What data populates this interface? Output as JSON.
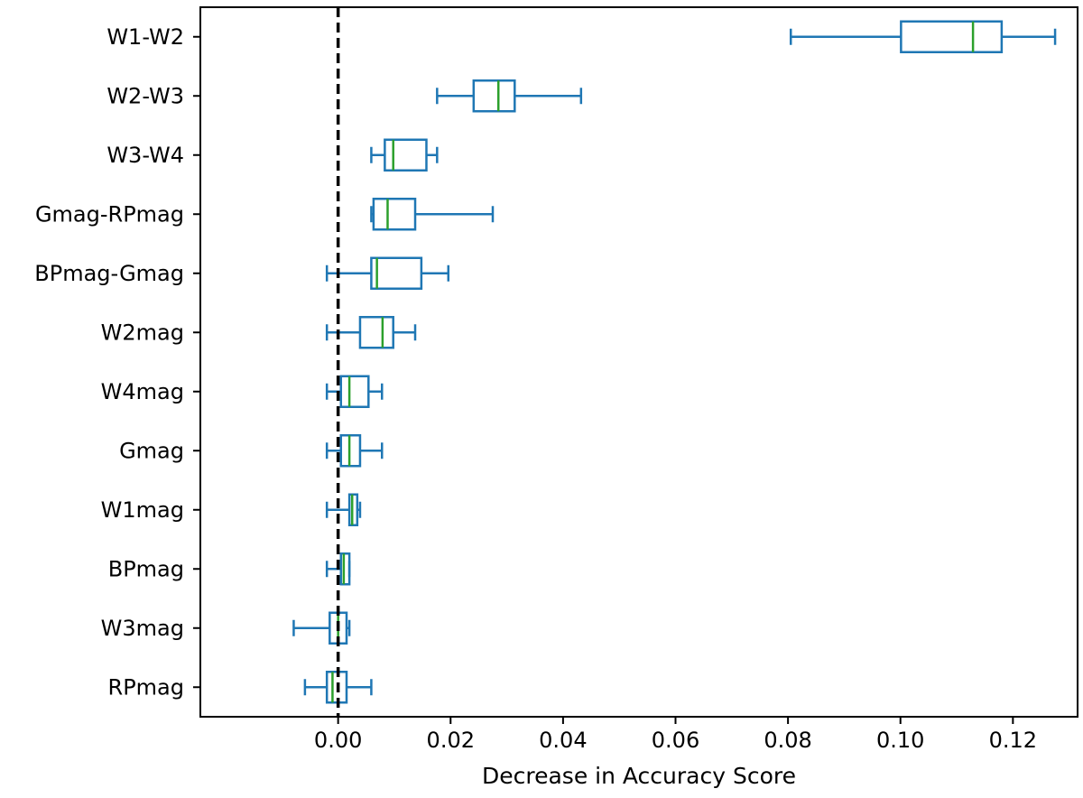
{
  "chart_data": {
    "type": "boxplot",
    "orientation": "horizontal",
    "title": "",
    "xlabel": "Decrease in Accuracy Score",
    "ylabel": "",
    "xlim": [
      -0.0245,
      0.1315
    ],
    "xticks": [
      0.0,
      0.02,
      0.04,
      0.06,
      0.08,
      0.1,
      0.12
    ],
    "xtick_labels": [
      "0.00",
      "0.02",
      "0.04",
      "0.06",
      "0.08",
      "0.10",
      "0.12"
    ],
    "reference_line": {
      "x": 0.0,
      "style": "dashed",
      "color": "#000000"
    },
    "box_color": "#1f77b4",
    "median_color": "#2ca02c",
    "categories": [
      "W1-W2",
      "W2-W3",
      "W3-W4",
      "Gmag-RPmag",
      "BPmag-Gmag",
      "W2mag",
      "W4mag",
      "Gmag",
      "W1mag",
      "BPmag",
      "W3mag",
      "RPmag"
    ],
    "boxes": [
      {
        "label": "W1-W2",
        "whislo": 0.0805,
        "q1": 0.1001,
        "med": 0.1129,
        "q3": 0.118,
        "whishi": 0.1275
      },
      {
        "label": "W2-W3",
        "whislo": 0.0176,
        "q1": 0.0241,
        "med": 0.0285,
        "q3": 0.0314,
        "whishi": 0.0432
      },
      {
        "label": "W3-W4",
        "whislo": 0.0059,
        "q1": 0.0083,
        "med": 0.0098,
        "q3": 0.0157,
        "whishi": 0.0176
      },
      {
        "label": "Gmag-RPmag",
        "whislo": 0.0059,
        "q1": 0.0063,
        "med": 0.0088,
        "q3": 0.0137,
        "whishi": 0.0275
      },
      {
        "label": "BPmag-Gmag",
        "whislo": -0.002,
        "q1": 0.0059,
        "med": 0.0069,
        "q3": 0.0148,
        "whishi": 0.0196
      },
      {
        "label": "W2mag",
        "whislo": -0.002,
        "q1": 0.0039,
        "med": 0.0079,
        "q3": 0.0098,
        "whishi": 0.0137
      },
      {
        "label": "W4mag",
        "whislo": -0.002,
        "q1": 0.0005,
        "med": 0.002,
        "q3": 0.0054,
        "whishi": 0.0078
      },
      {
        "label": "Gmag",
        "whislo": -0.002,
        "q1": 0.0005,
        "med": 0.002,
        "q3": 0.0039,
        "whishi": 0.0078
      },
      {
        "label": "W1mag",
        "whislo": -0.002,
        "q1": 0.002,
        "med": 0.0025,
        "q3": 0.0034,
        "whishi": 0.0039
      },
      {
        "label": "BPmag",
        "whislo": -0.002,
        "q1": 0.0005,
        "med": 0.001,
        "q3": 0.002,
        "whishi": 0.002
      },
      {
        "label": "W3mag",
        "whislo": -0.0079,
        "q1": -0.0015,
        "med": 0.0,
        "q3": 0.0015,
        "whishi": 0.002
      },
      {
        "label": "RPmag",
        "whislo": -0.0059,
        "q1": -0.002,
        "med": -0.001,
        "q3": 0.0015,
        "whishi": 0.0059
      }
    ]
  }
}
